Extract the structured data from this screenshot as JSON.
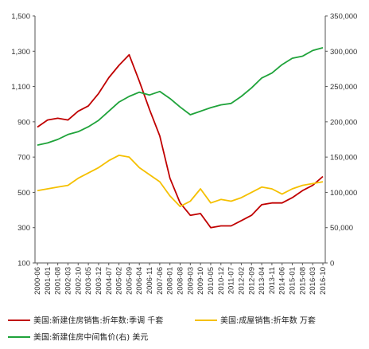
{
  "chart_data": {
    "type": "line",
    "x": [
      "2000-06",
      "2001-01",
      "2001-08",
      "2002-03",
      "2002-10",
      "2003-05",
      "2003-12",
      "2004-07",
      "2005-02",
      "2005-09",
      "2006-04",
      "2006-11",
      "2007-06",
      "2008-01",
      "2008-08",
      "2009-03",
      "2009-10",
      "2010-05",
      "2010-12",
      "2011-07",
      "2012-02",
      "2012-09",
      "2013-04",
      "2013-11",
      "2014-06",
      "2015-01",
      "2015-08",
      "2016-03",
      "2016-10"
    ],
    "y_left": {
      "min": 100,
      "max": 1500,
      "ticks": [
        "100",
        "300",
        "500",
        "700",
        "900",
        "1,100",
        "1,300",
        "1,500"
      ]
    },
    "y_right": {
      "min": 0,
      "max": 350000,
      "ticks": [
        "0",
        "50,000",
        "100,000",
        "150,000",
        "200,000",
        "250,000",
        "300,000",
        "350,000"
      ]
    },
    "series": [
      {
        "name": "美国:新建住房销售:折年数:季调 千套",
        "axis": "left",
        "color": "#c00000",
        "values": [
          870,
          910,
          920,
          910,
          960,
          990,
          1060,
          1150,
          1220,
          1280,
          1130,
          970,
          820,
          580,
          440,
          370,
          380,
          300,
          310,
          310,
          340,
          370,
          430,
          440,
          440,
          470,
          510,
          540,
          590
        ]
      },
      {
        "name": "美国:成屋销售:折年数 万套",
        "axis": "left",
        "color": "#f5c000",
        "values": [
          510,
          520,
          530,
          540,
          580,
          610,
          640,
          680,
          710,
          700,
          640,
          600,
          560,
          480,
          420,
          450,
          520,
          440,
          460,
          450,
          470,
          500,
          530,
          520,
          490,
          520,
          540,
          550,
          560
        ]
      },
      {
        "name": "美国:新建住房中间售价(右) 美元",
        "axis": "right",
        "color": "#1fa33a",
        "values": [
          167000,
          170000,
          175000,
          182000,
          186000,
          193000,
          202000,
          215000,
          228000,
          236000,
          242000,
          238000,
          243000,
          233000,
          221000,
          210000,
          215000,
          220000,
          224000,
          226000,
          236000,
          248000,
          262000,
          269000,
          281000,
          290000,
          293000,
          301000,
          305000
        ]
      }
    ],
    "legend": [
      "美国:新建住房销售:折年数:季调 千套",
      "美国:成屋销售:折年数 万套",
      "美国:新建住房中间售价(右) 美元"
    ],
    "grid": false,
    "legend_position": "bottom"
  }
}
